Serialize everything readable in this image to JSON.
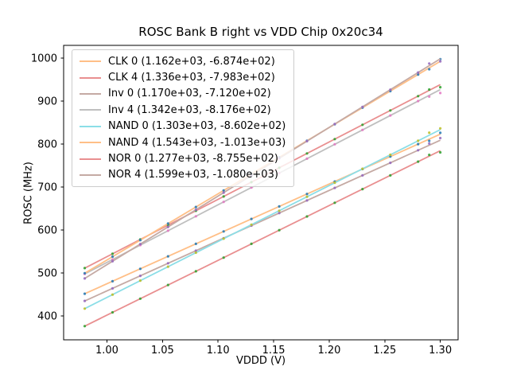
{
  "figure": {
    "background": "#ffffff",
    "axis_color": "#000000",
    "legend_border_color": "#cccccc"
  },
  "chart_data": {
    "type": "scatter",
    "title": "ROSC Bank B right vs VDD Chip 0x20c34",
    "xlabel": "VDDD (V)",
    "ylabel": "ROSC (MHz)",
    "xlim": [
      0.961,
      1.316
    ],
    "ylim": [
      344,
      1030
    ],
    "xticks": [
      1.0,
      1.05,
      1.1,
      1.15,
      1.2,
      1.25,
      1.3
    ],
    "xtick_labels": [
      "1.00",
      "1.05",
      "1.10",
      "1.15",
      "1.20",
      "1.25",
      "1.30"
    ],
    "yticks": [
      400,
      500,
      600,
      700,
      800,
      900,
      1000
    ],
    "ytick_labels": [
      "400",
      "500",
      "600",
      "700",
      "800",
      "900",
      "1000"
    ],
    "grid": false,
    "legend_position": "upper-left",
    "fit_x_range": [
      0.98,
      1.3
    ],
    "x_points": [
      0.98,
      1.005,
      1.03,
      1.055,
      1.08,
      1.105,
      1.13,
      1.155,
      1.18,
      1.205,
      1.23,
      1.255,
      1.28,
      1.29,
      1.3
    ],
    "note": "each series: scatter data points + linear fit line; legend shows (slope MHz/V, intercept MHz); point y = slope*x + intercept",
    "series": [
      {
        "name": "CLK 0",
        "legend_label": "CLK 0 (1.162e+03, -6.874e+02)",
        "slope": 1162,
        "intercept": -687.4,
        "line_color": "#ffbf87",
        "marker_color": "#1f77b4"
      },
      {
        "name": "CLK 4",
        "legend_label": "CLK 4 (1.336e+03, -7.983e+02)",
        "slope": 1336,
        "intercept": -798.3,
        "line_color": "#e98f90",
        "marker_color": "#2ca02c"
      },
      {
        "name": "Inv 0",
        "legend_label": "Inv 0 (1.170e+03, -7.120e+02)",
        "slope": 1170,
        "intercept": -712.0,
        "line_color": "#c5aaa4",
        "marker_color": "#9467bd"
      },
      {
        "name": "Inv 4",
        "legend_label": "Inv 4 (1.342e+03, -8.176e+02)",
        "slope": 1342,
        "intercept": -817.6,
        "line_color": "#bfbfbf",
        "marker_color": "#e377c2"
      },
      {
        "name": "NAND 0",
        "legend_label": "NAND 0 (1.303e+03, -8.602e+02)",
        "slope": 1303,
        "intercept": -860.2,
        "line_color": "#8bdee7",
        "marker_color": "#bcbd22"
      },
      {
        "name": "NAND 4",
        "legend_label": "NAND 4 (1.543e+03, -1.013e+03)",
        "slope": 1543,
        "intercept": -1013.0,
        "line_color": "#ffbf87",
        "marker_color": "#1f77b4"
      },
      {
        "name": "NOR 0",
        "legend_label": "NOR 0 (1.277e+03, -8.755e+02)",
        "slope": 1277,
        "intercept": -875.5,
        "line_color": "#e98f90",
        "marker_color": "#2ca02c"
      },
      {
        "name": "NOR 4",
        "legend_label": "NOR 4 (1.599e+03, -1.080e+03)",
        "slope": 1599,
        "intercept": -1080.0,
        "line_color": "#c5aaa4",
        "marker_color": "#9467bd"
      }
    ]
  }
}
